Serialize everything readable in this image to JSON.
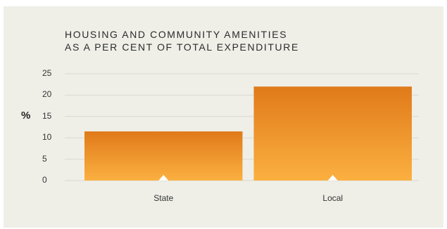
{
  "chart_data": {
    "type": "bar",
    "title_lines": [
      "HOUSING AND COMMUNITY AMENITIES",
      "AS A PER CENT OF TOTAL EXPENDITURE"
    ],
    "ylabel": "%",
    "xlabel": "",
    "categories": [
      "State",
      "Local"
    ],
    "values": [
      11.5,
      22
    ],
    "ylim": [
      0,
      25
    ],
    "yticks": [
      "0",
      "5",
      "10",
      "15",
      "20",
      "25"
    ],
    "grid": true,
    "legend": "none"
  },
  "colors": {
    "bar_top": "#e07a1a",
    "bar_bottom": "#fbb040",
    "grid": "#d9d9cf",
    "background": "#efefe8"
  }
}
